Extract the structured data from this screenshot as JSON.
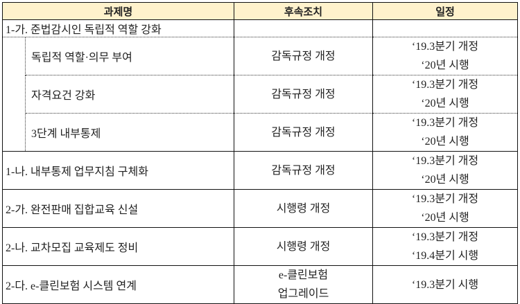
{
  "header": {
    "task": "과제명",
    "action": "후속조치",
    "schedule": "일정"
  },
  "group": {
    "title": "1-가. 준법감시인 독립적 역할 강화",
    "items": [
      {
        "name": "독립적 역할·의무 부여",
        "action": "감독규정 개정",
        "schedule": [
          "‘19.3분기 개정",
          "‘20년 시행"
        ]
      },
      {
        "name": "자격요건 강화",
        "action": "감독규정 개정",
        "schedule": [
          "‘19.3분기 개정",
          "‘20년 시행"
        ]
      },
      {
        "name": "3단계 내부통제",
        "action": "감독규정 개정",
        "schedule": [
          "‘19.3분기 개정",
          "‘20년 시행"
        ]
      }
    ]
  },
  "rows": [
    {
      "name": "1-나. 내부통제 업무지침 구체화",
      "action": [
        "감독규정 개정"
      ],
      "schedule": [
        "‘19.3분기 개정",
        "‘20년 시행"
      ]
    },
    {
      "name": "2-가. 완전판매 집합교육 신설",
      "action": [
        "시행령 개정"
      ],
      "schedule": [
        "‘19.3분기 개정",
        "‘20년 시행"
      ]
    },
    {
      "name": "2-나. 교차모집 교육제도 정비",
      "action": [
        "시행령 개정"
      ],
      "schedule": [
        "‘19.3분기 개정",
        "‘19.4분기 시행"
      ]
    },
    {
      "name": "2-다. e-클린보험 시스템 연계",
      "action": [
        "e-클린보험",
        "업그레이드"
      ],
      "schedule": [
        "‘19.3분기 시행"
      ]
    }
  ],
  "colors": {
    "header_bg": "#fff2cc",
    "border": "#111111"
  }
}
